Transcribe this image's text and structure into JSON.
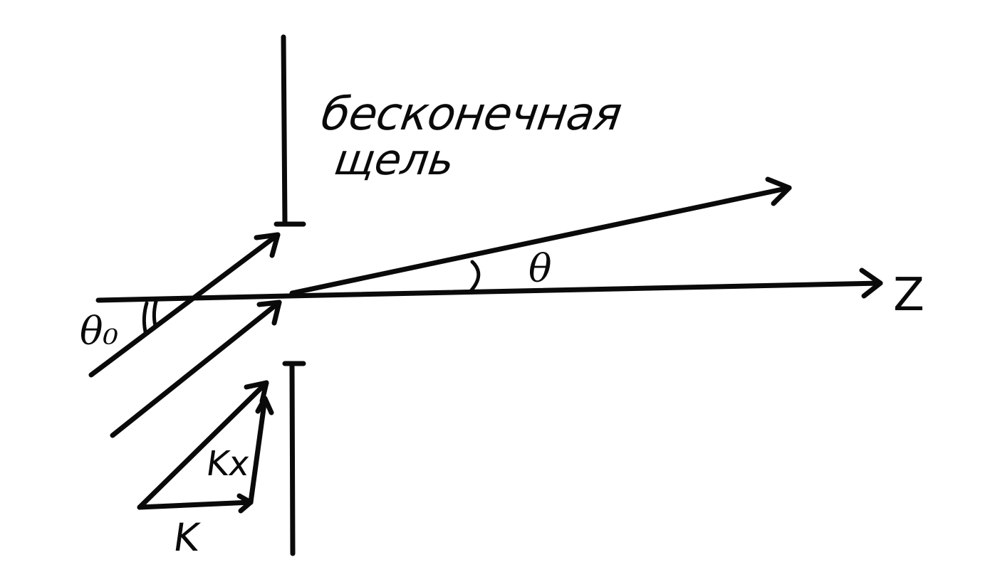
{
  "diagram": {
    "slit_label_line1": "бесконечная",
    "slit_label_line2": "щель",
    "axis_label": "Z",
    "angle_theta": "θ",
    "angle_theta0": "θ₀",
    "vector_k": "K",
    "vector_kx": "Kx"
  },
  "colors": {
    "ink": "#0a0a0a",
    "background": "#ffffff"
  }
}
